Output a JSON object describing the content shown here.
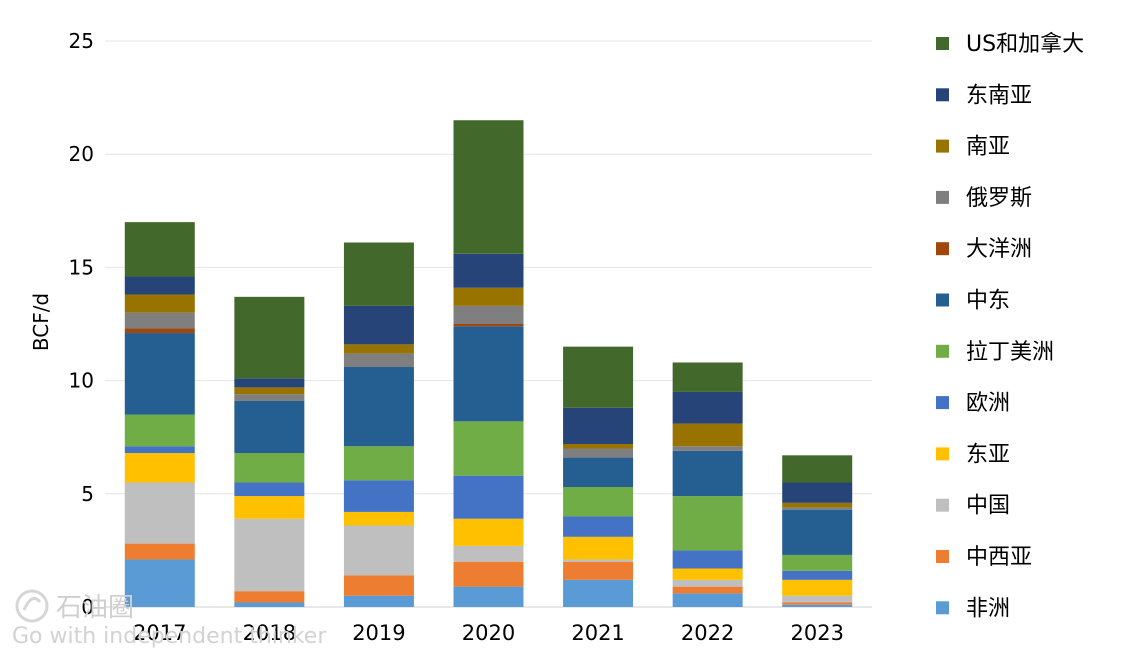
{
  "chart_data": {
    "type": "bar",
    "stacked": true,
    "ylabel": "BCF/d",
    "ylim": [
      0,
      25
    ],
    "yticks": [
      0,
      5,
      10,
      15,
      20,
      25
    ],
    "grid": true,
    "legend_position": "right",
    "categories": [
      "2017",
      "2018",
      "2019",
      "2020",
      "2021",
      "2022",
      "2023"
    ],
    "series": [
      {
        "name": "非洲",
        "color": "#5b9bd5",
        "values": [
          2.1,
          0.2,
          0.5,
          0.9,
          1.2,
          0.6,
          0.1
        ]
      },
      {
        "name": "中西亚",
        "color": "#ed7d31",
        "values": [
          0.7,
          0.5,
          0.9,
          1.1,
          0.8,
          0.3,
          0.1
        ]
      },
      {
        "name": "中国",
        "color": "#bfbfbf",
        "values": [
          2.7,
          3.2,
          2.2,
          0.7,
          0.1,
          0.3,
          0.3
        ]
      },
      {
        "name": "东亚",
        "color": "#ffc000",
        "values": [
          1.3,
          1.0,
          0.6,
          1.2,
          1.0,
          0.5,
          0.7
        ]
      },
      {
        "name": "欧洲",
        "color": "#4472c4",
        "values": [
          0.3,
          0.6,
          1.4,
          1.9,
          0.9,
          0.8,
          0.4
        ]
      },
      {
        "name": "拉丁美洲",
        "color": "#70ad47",
        "values": [
          1.4,
          1.3,
          1.5,
          2.4,
          1.3,
          2.4,
          0.7
        ]
      },
      {
        "name": "中东",
        "color": "#255e91",
        "values": [
          3.6,
          2.3,
          3.5,
          4.2,
          1.3,
          2.0,
          2.0
        ]
      },
      {
        "name": "大洋洲",
        "color": "#9e480e",
        "values": [
          0.2,
          0.0,
          0.0,
          0.1,
          0.0,
          0.0,
          0.0
        ]
      },
      {
        "name": "俄罗斯",
        "color": "#7f7f7f",
        "values": [
          0.7,
          0.3,
          0.6,
          0.8,
          0.4,
          0.2,
          0.1
        ]
      },
      {
        "name": "南亚",
        "color": "#997300",
        "values": [
          0.8,
          0.3,
          0.4,
          0.8,
          0.2,
          1.0,
          0.2
        ]
      },
      {
        "name": "东南亚",
        "color": "#264478",
        "values": [
          0.8,
          0.4,
          1.7,
          1.5,
          1.6,
          1.4,
          0.9
        ]
      },
      {
        "name": "US和加拿大",
        "color": "#43682b",
        "values": [
          2.4,
          3.6,
          2.8,
          5.9,
          2.7,
          1.3,
          1.2
        ]
      }
    ]
  },
  "watermark": {
    "logo_text": "石油圈",
    "slogan": "Go with independent thinker"
  }
}
